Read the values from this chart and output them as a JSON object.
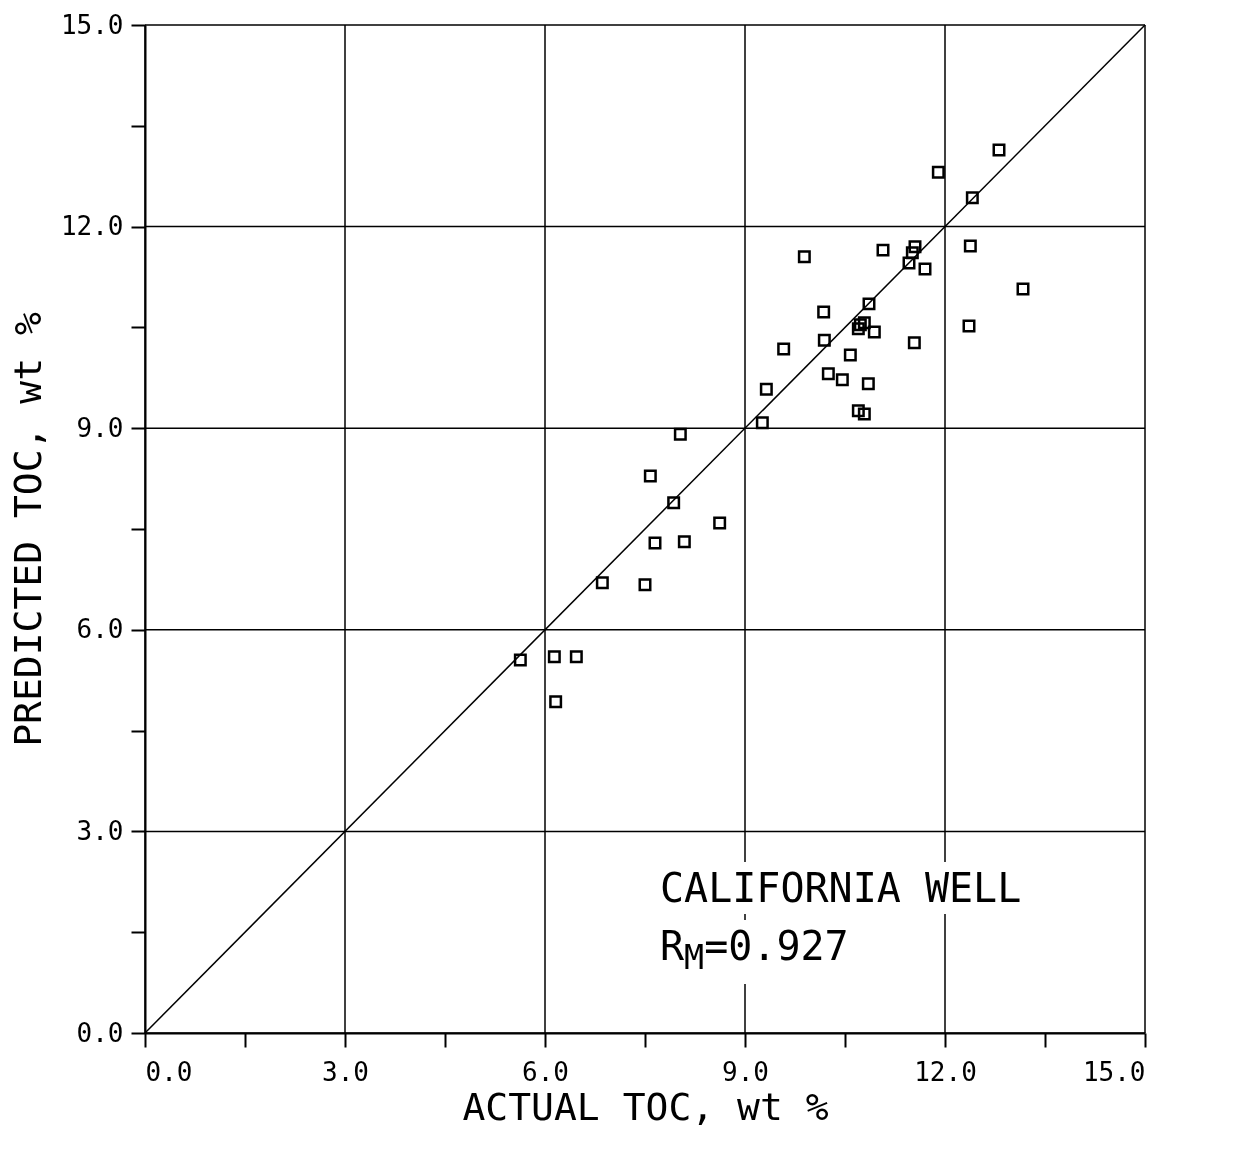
{
  "chart_data": {
    "type": "scatter",
    "xlabel": "ACTUAL TOC,  wt %",
    "ylabel": "PREDICTED TOC,  wt %",
    "annotations": [
      "CALIFORNIA WELL",
      "R$_{M}$=0.927"
    ],
    "xlim": [
      0,
      15
    ],
    "ylim": [
      0,
      15
    ],
    "xticks": [
      {
        "value": 0,
        "label": "0.0"
      },
      {
        "value": 1.5,
        "label": null
      },
      {
        "value": 3,
        "label": "3.0"
      },
      {
        "value": 4.5,
        "label": null
      },
      {
        "value": 6,
        "label": "6.0"
      },
      {
        "value": 7.5,
        "label": null
      },
      {
        "value": 9,
        "label": "9.0"
      },
      {
        "value": 10.5,
        "label": null
      },
      {
        "value": 12,
        "label": "12.0"
      },
      {
        "value": 13.5,
        "label": null
      },
      {
        "value": 15,
        "label": "15.0"
      }
    ],
    "yticks": [
      {
        "value": 0,
        "label": "0.0"
      },
      {
        "value": 1.5,
        "label": null
      },
      {
        "value": 3,
        "label": "3.0"
      },
      {
        "value": 4.5,
        "label": null
      },
      {
        "value": 6,
        "label": "6.0"
      },
      {
        "value": 7.5,
        "label": null
      },
      {
        "value": 9,
        "label": "9.0"
      },
      {
        "value": 10.5,
        "label": null
      },
      {
        "value": 12,
        "label": "12.0"
      },
      {
        "value": 13.5,
        "label": null
      },
      {
        "value": 15,
        "label": "15.0"
      }
    ],
    "grid": true,
    "marker": "square",
    "series": [
      {
        "color": "#000000",
        "x": [
          5.63,
          6.14,
          6.47,
          6.16,
          6.86,
          7.5,
          7.65,
          8.09,
          7.93,
          7.58,
          8.62,
          8.03,
          9.26,
          9.32,
          9.58,
          9.89,
          10.18,
          10.19,
          10.25,
          10.46,
          10.58,
          10.7,
          10.79,
          10.85,
          10.73,
          10.79,
          10.7,
          10.94,
          10.86,
          11.07,
          11.46,
          11.51,
          11.55,
          11.7,
          11.54,
          11.9,
          12.38,
          12.41,
          12.36,
          12.81,
          13.17
        ],
        "values": [
          5.55,
          5.6,
          5.6,
          4.93,
          6.7,
          6.67,
          7.29,
          7.31,
          7.89,
          8.29,
          7.59,
          8.91,
          9.08,
          9.58,
          10.18,
          11.55,
          10.73,
          10.31,
          9.81,
          9.72,
          10.09,
          9.26,
          9.21,
          9.66,
          10.54,
          10.57,
          10.48,
          10.43,
          10.85,
          11.65,
          11.46,
          11.61,
          11.7,
          11.37,
          10.27,
          12.81,
          11.71,
          12.43,
          10.52,
          13.14,
          11.07
        ]
      },
      {
        "type": "line",
        "color": "#000000",
        "marker": "none",
        "line_style": "solid",
        "x": [
          0,
          15
        ],
        "values": [
          0,
          15
        ]
      }
    ]
  }
}
